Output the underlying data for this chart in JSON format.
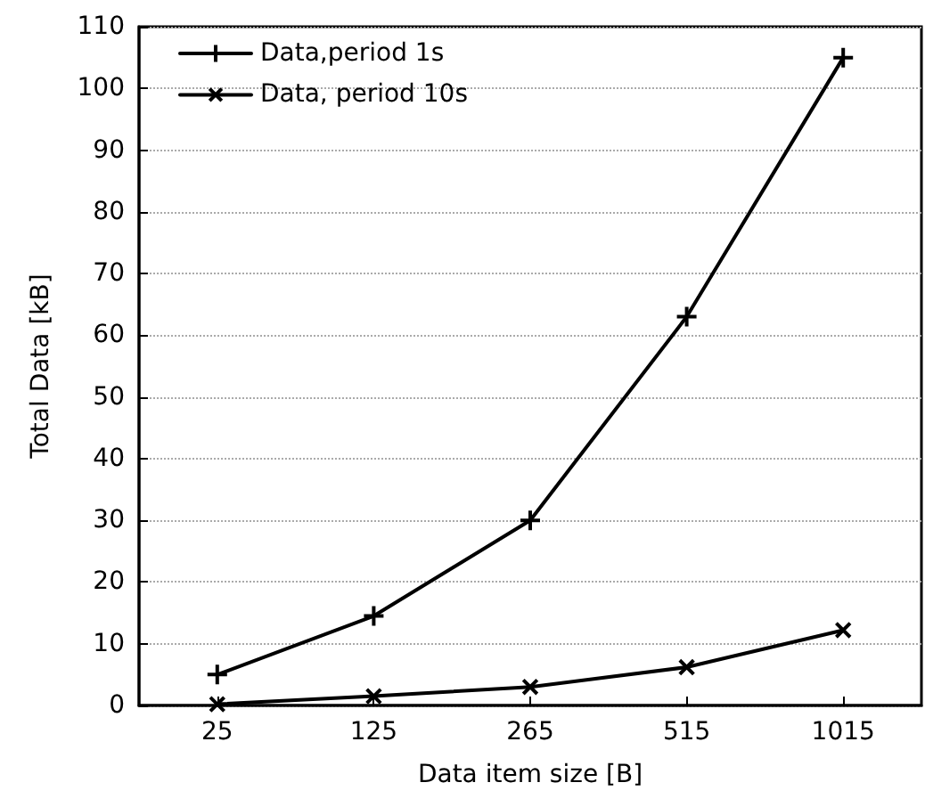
{
  "chart_data": {
    "type": "line",
    "xlabel": "Data item size [B]",
    "ylabel": "Total Data [kB]",
    "categories": [
      "25",
      "125",
      "265",
      "515",
      "1015"
    ],
    "series": [
      {
        "name": "Data,period 1s",
        "color": "#000000",
        "marker": "cross",
        "values": [
          5,
          14.5,
          30,
          63,
          105
        ]
      },
      {
        "name": "Data, period 10s",
        "color": "#000000",
        "marker": "cross",
        "values": [
          0.2,
          1.5,
          3,
          6.2,
          12.2
        ]
      }
    ],
    "ylim": [
      0,
      110
    ],
    "yticks": [
      0,
      10,
      20,
      30,
      40,
      50,
      60,
      70,
      80,
      90,
      100,
      110
    ],
    "grid": "y",
    "legend": "top left",
    "line_style": "solid"
  }
}
